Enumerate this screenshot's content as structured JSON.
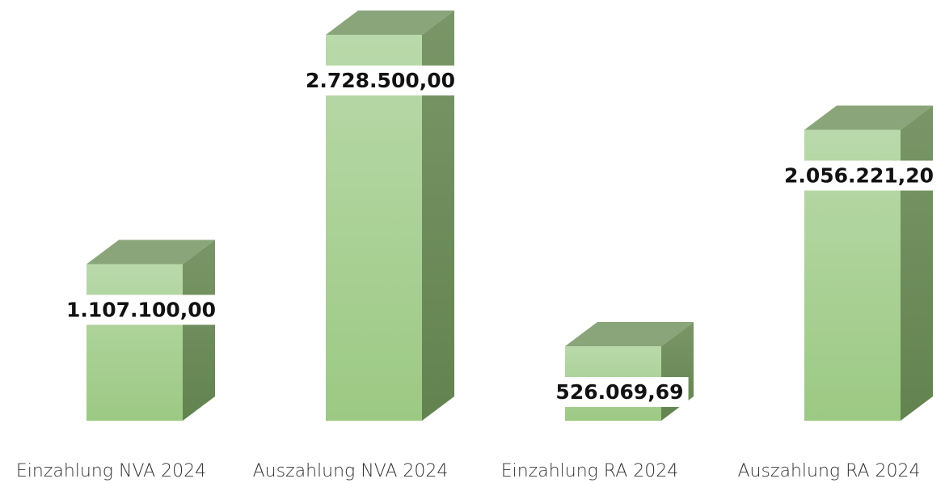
{
  "chart_data": {
    "type": "bar3d",
    "categories": [
      "Einzahlung NVA 2024",
      "Auszahlung NVA 2024",
      "Einzahlung RA 2024",
      "Auszahlung RA 2024"
    ],
    "values": [
      1107100,
      2728500,
      526069.69,
      2056221.2
    ],
    "value_labels": [
      "1.107.100,00",
      "2.728.500,00",
      "526.069,69",
      "2.056.221,20"
    ],
    "color": "#a9d18e"
  }
}
